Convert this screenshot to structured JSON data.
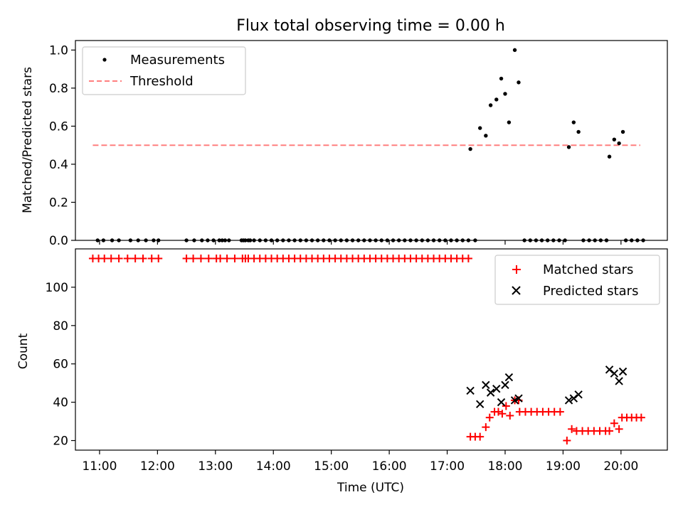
{
  "chart_data": [
    {
      "type": "scatter",
      "title": "Flux total observing time = 0.00 h",
      "xlabel": "",
      "ylabel": "Matched/Predicted stars",
      "xlim": [
        "10:35",
        "20:48"
      ],
      "ylim": [
        0,
        1.05
      ],
      "y_ticks": [
        0.0,
        0.2,
        0.4,
        0.6,
        0.8,
        1.0
      ],
      "y_tick_labels": [
        "0.0",
        "0.2",
        "0.4",
        "0.6",
        "0.8",
        "1.0"
      ],
      "grid": false,
      "legend_position": "upper left",
      "series": [
        {
          "name": "Measurements",
          "marker": "dot",
          "color": "#000000",
          "points": [
            [
              "10:58",
              0
            ],
            [
              "11:04",
              0
            ],
            [
              "11:13",
              0
            ],
            [
              "11:20",
              0
            ],
            [
              "11:32",
              0
            ],
            [
              "11:40",
              0
            ],
            [
              "11:48",
              0
            ],
            [
              "11:56",
              0
            ],
            [
              "12:01",
              0
            ],
            [
              "12:30",
              0
            ],
            [
              "12:38",
              0
            ],
            [
              "12:46",
              0
            ],
            [
              "12:52",
              0
            ],
            [
              "12:58",
              0
            ],
            [
              "13:04",
              0
            ],
            [
              "13:07",
              0
            ],
            [
              "13:10",
              0
            ],
            [
              "13:14",
              0
            ],
            [
              "13:27",
              0
            ],
            [
              "13:29",
              0
            ],
            [
              "13:31",
              0
            ],
            [
              "13:34",
              0
            ],
            [
              "13:36",
              0
            ],
            [
              "13:40",
              0
            ],
            [
              "13:46",
              0
            ],
            [
              "13:52",
              0
            ],
            [
              "13:58",
              0
            ],
            [
              "14:04",
              0
            ],
            [
              "14:10",
              0
            ],
            [
              "14:16",
              0
            ],
            [
              "14:22",
              0
            ],
            [
              "14:28",
              0
            ],
            [
              "14:34",
              0
            ],
            [
              "14:40",
              0
            ],
            [
              "14:46",
              0
            ],
            [
              "14:52",
              0
            ],
            [
              "14:58",
              0
            ],
            [
              "15:04",
              0
            ],
            [
              "15:10",
              0
            ],
            [
              "15:16",
              0
            ],
            [
              "15:22",
              0
            ],
            [
              "15:28",
              0
            ],
            [
              "15:34",
              0
            ],
            [
              "15:40",
              0
            ],
            [
              "15:46",
              0
            ],
            [
              "15:52",
              0
            ],
            [
              "15:58",
              0
            ],
            [
              "16:04",
              0
            ],
            [
              "16:10",
              0
            ],
            [
              "16:16",
              0
            ],
            [
              "16:22",
              0
            ],
            [
              "16:28",
              0
            ],
            [
              "16:34",
              0
            ],
            [
              "16:40",
              0
            ],
            [
              "16:46",
              0
            ],
            [
              "16:52",
              0
            ],
            [
              "16:58",
              0
            ],
            [
              "17:04",
              0
            ],
            [
              "17:10",
              0
            ],
            [
              "17:16",
              0
            ],
            [
              "17:22",
              0
            ],
            [
              "17:29",
              0
            ],
            [
              "17:24",
              0.48
            ],
            [
              "17:34",
              0.59
            ],
            [
              "17:40",
              0.55
            ],
            [
              "17:45",
              0.71
            ],
            [
              "17:51",
              0.74
            ],
            [
              "17:56",
              0.85
            ],
            [
              "18:00",
              0.77
            ],
            [
              "18:04",
              0.62
            ],
            [
              "18:10",
              1.0
            ],
            [
              "18:14",
              0.83
            ],
            [
              "18:20",
              0
            ],
            [
              "18:26",
              0
            ],
            [
              "18:32",
              0
            ],
            [
              "18:38",
              0
            ],
            [
              "18:44",
              0
            ],
            [
              "18:50",
              0
            ],
            [
              "18:56",
              0
            ],
            [
              "19:02",
              0
            ],
            [
              "19:06",
              0.49
            ],
            [
              "19:11",
              0.62
            ],
            [
              "19:16",
              0.57
            ],
            [
              "19:21",
              0
            ],
            [
              "19:27",
              0
            ],
            [
              "19:33",
              0
            ],
            [
              "19:39",
              0
            ],
            [
              "19:45",
              0
            ],
            [
              "19:48",
              0.44
            ],
            [
              "19:53",
              0.53
            ],
            [
              "19:58",
              0.51
            ],
            [
              "20:02",
              0.57
            ],
            [
              "20:05",
              0
            ],
            [
              "20:11",
              0
            ],
            [
              "20:17",
              0
            ],
            [
              "20:23",
              0
            ]
          ]
        },
        {
          "name": "Threshold",
          "line_style": "dashed",
          "color": "#ff7f7f",
          "points": [
            [
              "10:53",
              0.5
            ],
            [
              "20:20",
              0.5
            ]
          ]
        }
      ]
    },
    {
      "type": "scatter",
      "title": "",
      "xlabel": "Time (UTC)",
      "ylabel": "Count",
      "xlim": [
        "10:35",
        "20:48"
      ],
      "ylim": [
        15,
        120
      ],
      "y_ticks": [
        20,
        40,
        60,
        80,
        100
      ],
      "y_tick_labels": [
        "20",
        "40",
        "60",
        "80",
        "100"
      ],
      "x_ticks": [
        "11:00",
        "12:00",
        "13:00",
        "14:00",
        "15:00",
        "16:00",
        "17:00",
        "18:00",
        "19:00",
        "20:00"
      ],
      "x_tick_labels": [
        "11:00",
        "12:00",
        "13:00",
        "14:00",
        "15:00",
        "16:00",
        "17:00",
        "18:00",
        "19:00",
        "20:00"
      ],
      "grid": false,
      "legend_position": "upper right",
      "series": [
        {
          "name": "Matched stars",
          "marker": "plus",
          "color": "#ff0000",
          "points": [
            [
              "10:53",
              115
            ],
            [
              "10:59",
              115
            ],
            [
              "11:05",
              115
            ],
            [
              "11:12",
              115
            ],
            [
              "11:20",
              115
            ],
            [
              "11:29",
              115
            ],
            [
              "11:37",
              115
            ],
            [
              "11:45",
              115
            ],
            [
              "11:54",
              115
            ],
            [
              "12:01",
              115
            ],
            [
              "12:30",
              115
            ],
            [
              "12:37",
              115
            ],
            [
              "12:45",
              115
            ],
            [
              "12:53",
              115
            ],
            [
              "13:01",
              115
            ],
            [
              "13:05",
              115
            ],
            [
              "13:12",
              115
            ],
            [
              "13:20",
              115
            ],
            [
              "13:28",
              115
            ],
            [
              "13:31",
              115
            ],
            [
              "13:34",
              115
            ],
            [
              "13:40",
              115
            ],
            [
              "13:46",
              115
            ],
            [
              "13:52",
              115
            ],
            [
              "13:58",
              115
            ],
            [
              "14:04",
              115
            ],
            [
              "14:10",
              115
            ],
            [
              "14:16",
              115
            ],
            [
              "14:22",
              115
            ],
            [
              "14:28",
              115
            ],
            [
              "14:34",
              115
            ],
            [
              "14:40",
              115
            ],
            [
              "14:46",
              115
            ],
            [
              "14:52",
              115
            ],
            [
              "14:58",
              115
            ],
            [
              "15:04",
              115
            ],
            [
              "15:10",
              115
            ],
            [
              "15:16",
              115
            ],
            [
              "15:22",
              115
            ],
            [
              "15:28",
              115
            ],
            [
              "15:34",
              115
            ],
            [
              "15:40",
              115
            ],
            [
              "15:46",
              115
            ],
            [
              "15:52",
              115
            ],
            [
              "15:58",
              115
            ],
            [
              "16:04",
              115
            ],
            [
              "16:10",
              115
            ],
            [
              "16:16",
              115
            ],
            [
              "16:22",
              115
            ],
            [
              "16:28",
              115
            ],
            [
              "16:34",
              115
            ],
            [
              "16:40",
              115
            ],
            [
              "16:46",
              115
            ],
            [
              "16:52",
              115
            ],
            [
              "16:58",
              115
            ],
            [
              "17:04",
              115
            ],
            [
              "17:10",
              115
            ],
            [
              "17:16",
              115
            ],
            [
              "17:22",
              115
            ],
            [
              "17:24",
              22
            ],
            [
              "17:29",
              22
            ],
            [
              "17:34",
              22
            ],
            [
              "17:40",
              27
            ],
            [
              "17:44",
              32
            ],
            [
              "17:49",
              35
            ],
            [
              "17:53",
              35
            ],
            [
              "17:57",
              34
            ],
            [
              "18:01",
              38
            ],
            [
              "18:05",
              33
            ],
            [
              "18:10",
              41
            ],
            [
              "18:14",
              41
            ],
            [
              "18:15",
              35
            ],
            [
              "18:21",
              35
            ],
            [
              "18:27",
              35
            ],
            [
              "18:33",
              35
            ],
            [
              "18:39",
              35
            ],
            [
              "18:45",
              35
            ],
            [
              "18:51",
              35
            ],
            [
              "18:57",
              35
            ],
            [
              "19:04",
              20
            ],
            [
              "19:09",
              26
            ],
            [
              "19:14",
              25
            ],
            [
              "19:20",
              25
            ],
            [
              "19:26",
              25
            ],
            [
              "19:32",
              25
            ],
            [
              "19:38",
              25
            ],
            [
              "19:44",
              25
            ],
            [
              "19:48",
              25
            ],
            [
              "19:53",
              29
            ],
            [
              "19:58",
              26
            ],
            [
              "20:01",
              32
            ],
            [
              "20:06",
              32
            ],
            [
              "20:11",
              32
            ],
            [
              "20:16",
              32
            ],
            [
              "20:21",
              32
            ]
          ]
        },
        {
          "name": "Predicted stars",
          "marker": "x",
          "color": "#000000",
          "points": [
            [
              "17:24",
              46
            ],
            [
              "17:34",
              39
            ],
            [
              "17:40",
              49
            ],
            [
              "17:45",
              45
            ],
            [
              "17:51",
              47
            ],
            [
              "17:56",
              40
            ],
            [
              "18:00",
              49
            ],
            [
              "18:04",
              53
            ],
            [
              "18:10",
              41
            ],
            [
              "18:14",
              42
            ],
            [
              "19:06",
              41
            ],
            [
              "19:11",
              42
            ],
            [
              "19:16",
              44
            ],
            [
              "19:48",
              57
            ],
            [
              "19:53",
              55
            ],
            [
              "19:58",
              51
            ],
            [
              "20:02",
              56
            ]
          ]
        }
      ]
    }
  ]
}
